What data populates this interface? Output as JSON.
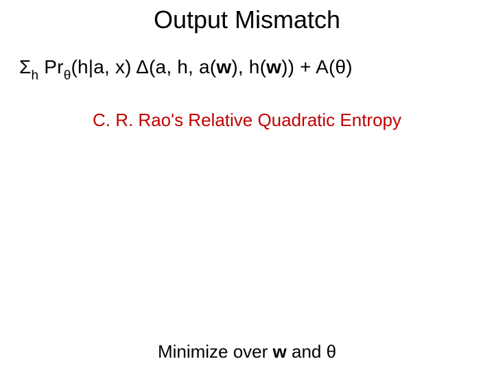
{
  "slide": {
    "title": "Output Mismatch",
    "formula": {
      "sigma": "Σ",
      "sub_h": "h",
      "pr": " Pr",
      "sub_theta": "θ",
      "cond": "(h|a, x)  Δ(a, h, a(",
      "w1": "w",
      "mid": "), h(",
      "w2": "w",
      "tail": ")) + A(θ)"
    },
    "caption": "C. R. Rao's Relative Quadratic Entropy",
    "bottom": {
      "lead": "Minimize over ",
      "w": "w",
      "and": " and θ"
    }
  },
  "style": {
    "background_color": "#ffffff",
    "text_color": "#000000",
    "caption_color": "#c00000",
    "title_fontsize": 36,
    "formula_fontsize": 28,
    "caption_fontsize": 26,
    "bottom_fontsize": 26,
    "font_family": "Arial"
  }
}
